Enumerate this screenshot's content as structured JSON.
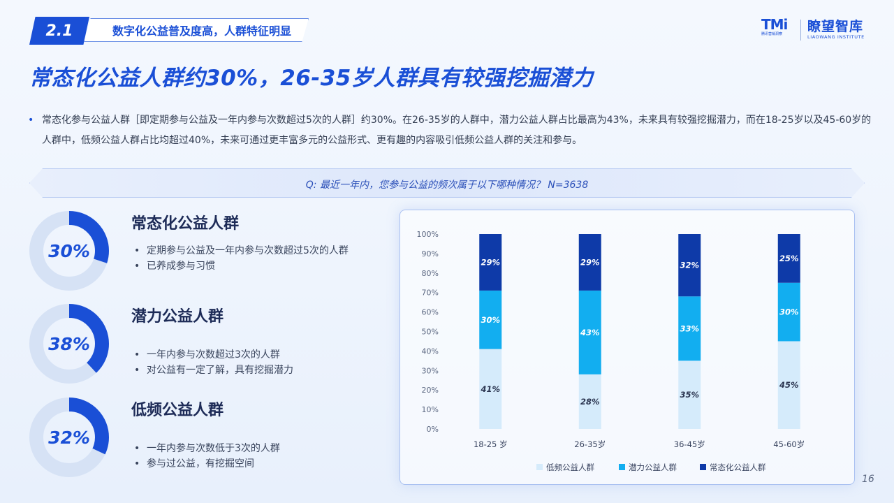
{
  "section": {
    "number": "2.1",
    "label": "数字化公益普及度高，人群特征明显"
  },
  "logos": {
    "tmi_mark": "TMi",
    "tmi_sub": "腾讯营销洞察",
    "liaowang_cn": "瞭望智库",
    "liaowang_en": "LIAOWANG INSTITUTE"
  },
  "headline": "常态化公益人群约30%，26-35岁人群具有较强挖掘潜力",
  "description": "常态化参与公益人群［即定期参与公益及一年内参与次数超过5次的人群］约30%。在26-35岁的人群中，潜力公益人群占比最高为43%，未来具有较强挖掘潜力，而在18-25岁以及45-60岁的人群中，低频公益人群占比均超过40%，未来可通过更丰富多元的公益形式、更有趣的内容吸引低频公益人群的关注和参与。",
  "question": "Q: 最近一年内，您参与公益的频次属于以下哪种情况？ N=3638",
  "groups": [
    {
      "percent": "30%",
      "value": 30,
      "title": "常态化公益人群",
      "bullets": [
        "定期参与公益及一年内参与次数超过5次的人群",
        "已养成参与习惯"
      ]
    },
    {
      "percent": "38%",
      "value": 38,
      "title": "潜力公益人群",
      "bullets": [
        "一年内参与次数超过3次的人群",
        "对公益有一定了解，具有挖掘潜力"
      ]
    },
    {
      "percent": "32%",
      "value": 32,
      "title": "低频公益人群",
      "bullets": [
        "一年内参与次数低于3次的人群",
        "参与过公益，有挖掘空间"
      ]
    }
  ],
  "colors": {
    "accent": "#1a4fd6",
    "low": "#d5ebfb",
    "potential": "#12aef0",
    "regular": "#0e3aa8",
    "donut_track": "#d6e2f5"
  },
  "chart_data": {
    "type": "bar",
    "stacked": true,
    "categories": [
      "18-25 岁",
      "26-35岁",
      "36-45岁",
      "45-60岁"
    ],
    "series": [
      {
        "name": "低频公益人群",
        "values": [
          41,
          28,
          35,
          45
        ],
        "labels": [
          "41%",
          "28%",
          "35%",
          "45%"
        ],
        "color": "#d5ebfb"
      },
      {
        "name": "潜力公益人群",
        "values": [
          30,
          43,
          33,
          30
        ],
        "labels": [
          "30%",
          "43%",
          "33%",
          "30%"
        ],
        "color": "#12aef0"
      },
      {
        "name": "常态化公益人群",
        "values": [
          29,
          29,
          32,
          25
        ],
        "labels": [
          "29%",
          "29%",
          "32%",
          "25%"
        ],
        "color": "#0e3aa8"
      }
    ],
    "yticks": [
      "0%",
      "10%",
      "20%",
      "30%",
      "40%",
      "50%",
      "60%",
      "70%",
      "80%",
      "90%",
      "100%"
    ],
    "ylim": [
      0,
      100
    ],
    "legend_position": "bottom"
  },
  "page_number": "16"
}
